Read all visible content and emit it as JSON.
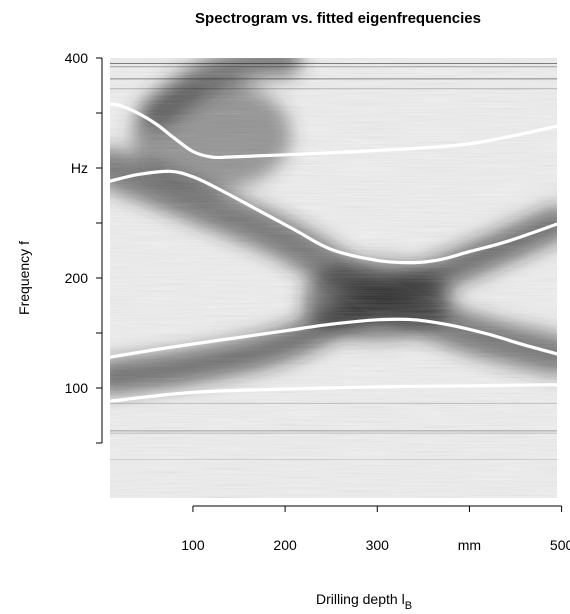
{
  "chart_data": {
    "type": "heatmap",
    "title": "Spectrogram vs. fitted eigenfrequencies",
    "xlabel": "Drilling depth l",
    "xlabel_subscript": "B",
    "ylabel": "Frequency f",
    "x_unit_label": "mm",
    "y_unit_label": "Hz",
    "xlim": [
      10,
      495
    ],
    "ylim": [
      0,
      400
    ],
    "x_ticks": [
      {
        "value": 100,
        "label": "100"
      },
      {
        "value": 200,
        "label": "200"
      },
      {
        "value": 300,
        "label": "300"
      },
      {
        "value": 400,
        "label": "mm"
      },
      {
        "value": 500,
        "label": "500"
      }
    ],
    "y_ticks": [
      {
        "value": 50,
        "label": ""
      },
      {
        "value": 100,
        "label": "100"
      },
      {
        "value": 150,
        "label": ""
      },
      {
        "value": 200,
        "label": "200"
      },
      {
        "value": 250,
        "label": ""
      },
      {
        "value": 300,
        "label": "Hz"
      },
      {
        "value": 350,
        "label": ""
      },
      {
        "value": 400,
        "label": "400"
      }
    ],
    "background": "grayscale spectrogram, darker = higher amplitude",
    "dark_ridges": [
      {
        "x": [
          10,
          100,
          200,
          300,
          400,
          495
        ],
        "y": [
          110,
          120,
          140,
          180,
          215,
          250
        ]
      },
      {
        "x": [
          10,
          100,
          200,
          300,
          400,
          495
        ],
        "y": [
          300,
          270,
          235,
          185,
          150,
          130
        ]
      },
      {
        "x": [
          60,
          110,
          160,
          200
        ],
        "y": [
          350,
          380,
          395,
          398
        ]
      }
    ],
    "series": [
      {
        "x": [
          10,
          20,
          40,
          60,
          80,
          100,
          120,
          140,
          200,
          300,
          400,
          495
        ],
        "y": [
          358,
          357,
          350,
          340,
          327,
          315,
          310,
          310,
          312,
          316,
          322,
          338
        ]
      },
      {
        "x": [
          10,
          40,
          75,
          100,
          130,
          170,
          210,
          250,
          300,
          340,
          370,
          400,
          440,
          495
        ],
        "y": [
          288,
          294,
          297,
          292,
          280,
          262,
          244,
          226,
          216,
          214,
          217,
          224,
          233,
          249
        ]
      },
      {
        "x": [
          10,
          60,
          100,
          150,
          200,
          250,
          300,
          340,
          380,
          420,
          460,
          495
        ],
        "y": [
          128,
          135,
          140,
          146,
          152,
          158,
          162,
          162,
          157,
          149,
          139,
          131
        ]
      },
      {
        "x": [
          10,
          100,
          200,
          300,
          400,
          495
        ],
        "y": [
          88,
          96,
          99,
          101,
          102,
          103
        ]
      }
    ],
    "colors": {
      "curve": "#ffffff",
      "background_light": "#f4f4f4",
      "background_dark": "#222222"
    },
    "grid": false,
    "legend": "none"
  }
}
